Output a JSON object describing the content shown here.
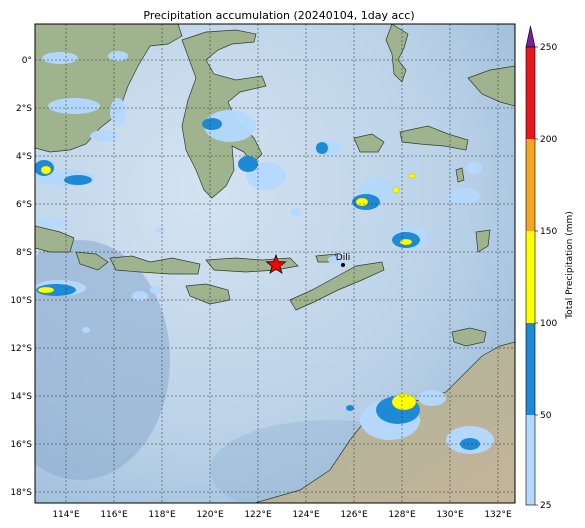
{
  "title": "Precipitation accumulation (20240104, 1day acc)",
  "lon_labels": [
    "114°E",
    "116°E",
    "118°E",
    "120°E",
    "122°E",
    "124°E",
    "126°E",
    "128°E",
    "130°E",
    "132°E"
  ],
  "lat_labels": [
    "0°",
    "2°S",
    "4°S",
    "6°S",
    "8°S",
    "10°S",
    "12°S",
    "14°S",
    "16°S",
    "18°S"
  ],
  "marker": {
    "label": "Dili",
    "star_color": "#ff0000"
  },
  "colorbar": {
    "label": "Total Precipitation (mm)",
    "ticks": [
      "25",
      "50",
      "100",
      "150",
      "200",
      "250"
    ],
    "colors": [
      "#b5d9ff",
      "#1e8ad6",
      "#ffff00",
      "#f5a623",
      "#e8161c"
    ],
    "extend_color": "#7a1fa2"
  },
  "colors": {
    "sea": "#c3d8ea",
    "land": "#9fb38f",
    "frame": "#000000"
  }
}
